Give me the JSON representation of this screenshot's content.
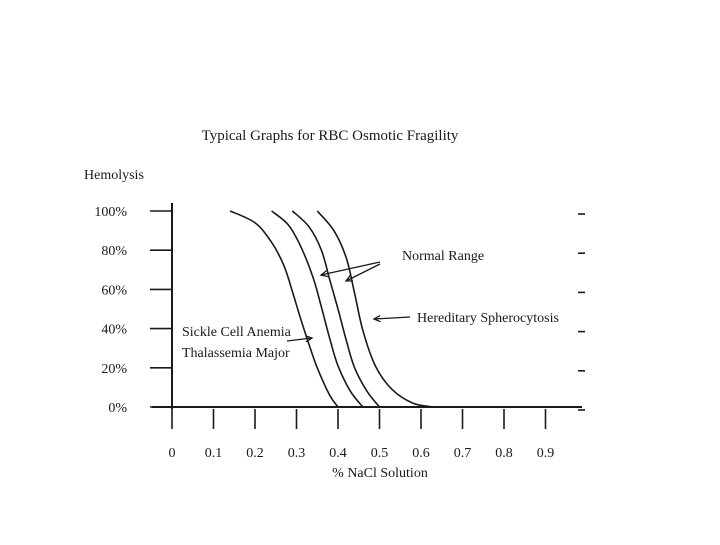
{
  "chart_data": {
    "type": "line",
    "title": "Typical Graphs for RBC Osmotic Fragility",
    "ylabel": "Hemolysis",
    "xlabel": "% NaCl Solution",
    "xlim": [
      0,
      0.95
    ],
    "ylim": [
      0,
      100
    ],
    "x_ticks": [
      0,
      0.1,
      0.2,
      0.3,
      0.4,
      0.5,
      0.6,
      0.7,
      0.8,
      0.9
    ],
    "x_tick_labels": [
      "0",
      "0.1",
      "0.2",
      "0.3",
      "0.4",
      "0.5",
      "0.6",
      "0.7",
      "0.8",
      "0.9"
    ],
    "y_ticks": [
      0,
      20,
      40,
      60,
      80,
      100
    ],
    "y_tick_labels": [
      "0%",
      "20%",
      "40%",
      "60%",
      "80%",
      "100%"
    ],
    "grid": false,
    "series": [
      {
        "name": "Sickle Cell Anemia Thalassemia Major",
        "x": [
          0.14,
          0.2,
          0.24,
          0.27,
          0.29,
          0.31,
          0.33,
          0.35,
          0.38,
          0.4
        ],
        "y": [
          100,
          94,
          84,
          72,
          59,
          45,
          32,
          20,
          6,
          0
        ]
      },
      {
        "name": "Normal Range",
        "x": [
          0.24,
          0.28,
          0.31,
          0.34,
          0.36,
          0.38,
          0.4,
          0.43,
          0.46
        ],
        "y": [
          100,
          93,
          82,
          66,
          51,
          35,
          21,
          8,
          0
        ]
      },
      {
        "name": "Normal Range",
        "x": [
          0.29,
          0.33,
          0.36,
          0.38,
          0.4,
          0.42,
          0.44,
          0.47,
          0.5
        ],
        "y": [
          100,
          92,
          80,
          65,
          50,
          34,
          20,
          8,
          0
        ]
      },
      {
        "name": "Hereditary Spherocytosis",
        "x": [
          0.35,
          0.39,
          0.42,
          0.44,
          0.46,
          0.49,
          0.53,
          0.58,
          0.63
        ],
        "y": [
          100,
          90,
          76,
          58,
          39,
          21,
          9,
          2,
          0
        ]
      }
    ],
    "annotations": [
      {
        "text": "Normal Range",
        "target_series": [
          1,
          2
        ]
      },
      {
        "text": "Hereditary Spherocytosis",
        "target_series": [
          3
        ]
      },
      {
        "text": "Sickle Cell Anemia",
        "target_series": [
          0
        ]
      },
      {
        "text": "Thalassemia Major",
        "target_series": [
          0
        ]
      }
    ]
  }
}
